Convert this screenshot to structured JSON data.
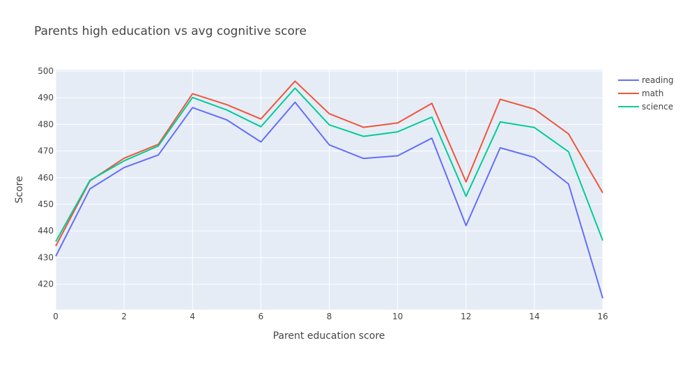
{
  "chart_data": {
    "type": "line",
    "title": "Parents high education vs avg cognitive score",
    "xlabel": "Parent education score",
    "ylabel": "Score",
    "xlim": [
      0,
      16
    ],
    "ylim": [
      410.5,
      500.5
    ],
    "x_ticks": [
      0,
      2,
      4,
      6,
      8,
      10,
      12,
      14,
      16
    ],
    "y_ticks": [
      420,
      430,
      440,
      450,
      460,
      470,
      480,
      490,
      500
    ],
    "grid": true,
    "legend_position": "top-right",
    "x": [
      0,
      1,
      2,
      3,
      4,
      5,
      6,
      7,
      8,
      9,
      10,
      11,
      12,
      13,
      14,
      15,
      16
    ],
    "series": [
      {
        "name": "reading",
        "color": "#636efa",
        "values": [
          430.5,
          455.8,
          463.8,
          468.5,
          486.3,
          481.7,
          473.4,
          488.3,
          472.3,
          467.2,
          468.2,
          474.8,
          442.0,
          471.2,
          467.6,
          457.6,
          414.7
        ]
      },
      {
        "name": "math",
        "color": "#ef553b",
        "values": [
          434.3,
          458.8,
          467.3,
          472.5,
          491.5,
          487.4,
          482.0,
          496.2,
          484.0,
          478.9,
          480.5,
          487.9,
          458.4,
          489.4,
          485.7,
          476.4,
          454.3
        ]
      },
      {
        "name": "science",
        "color": "#00cc96",
        "values": [
          436.0,
          459.0,
          466.3,
          471.9,
          490.1,
          485.4,
          479.1,
          493.6,
          479.8,
          475.5,
          477.2,
          482.7,
          453.0,
          480.9,
          478.8,
          469.7,
          436.4
        ]
      }
    ]
  },
  "colors": {
    "plot_background": "#e5ecf6",
    "grid": "#ffffff",
    "text": "#444444"
  }
}
